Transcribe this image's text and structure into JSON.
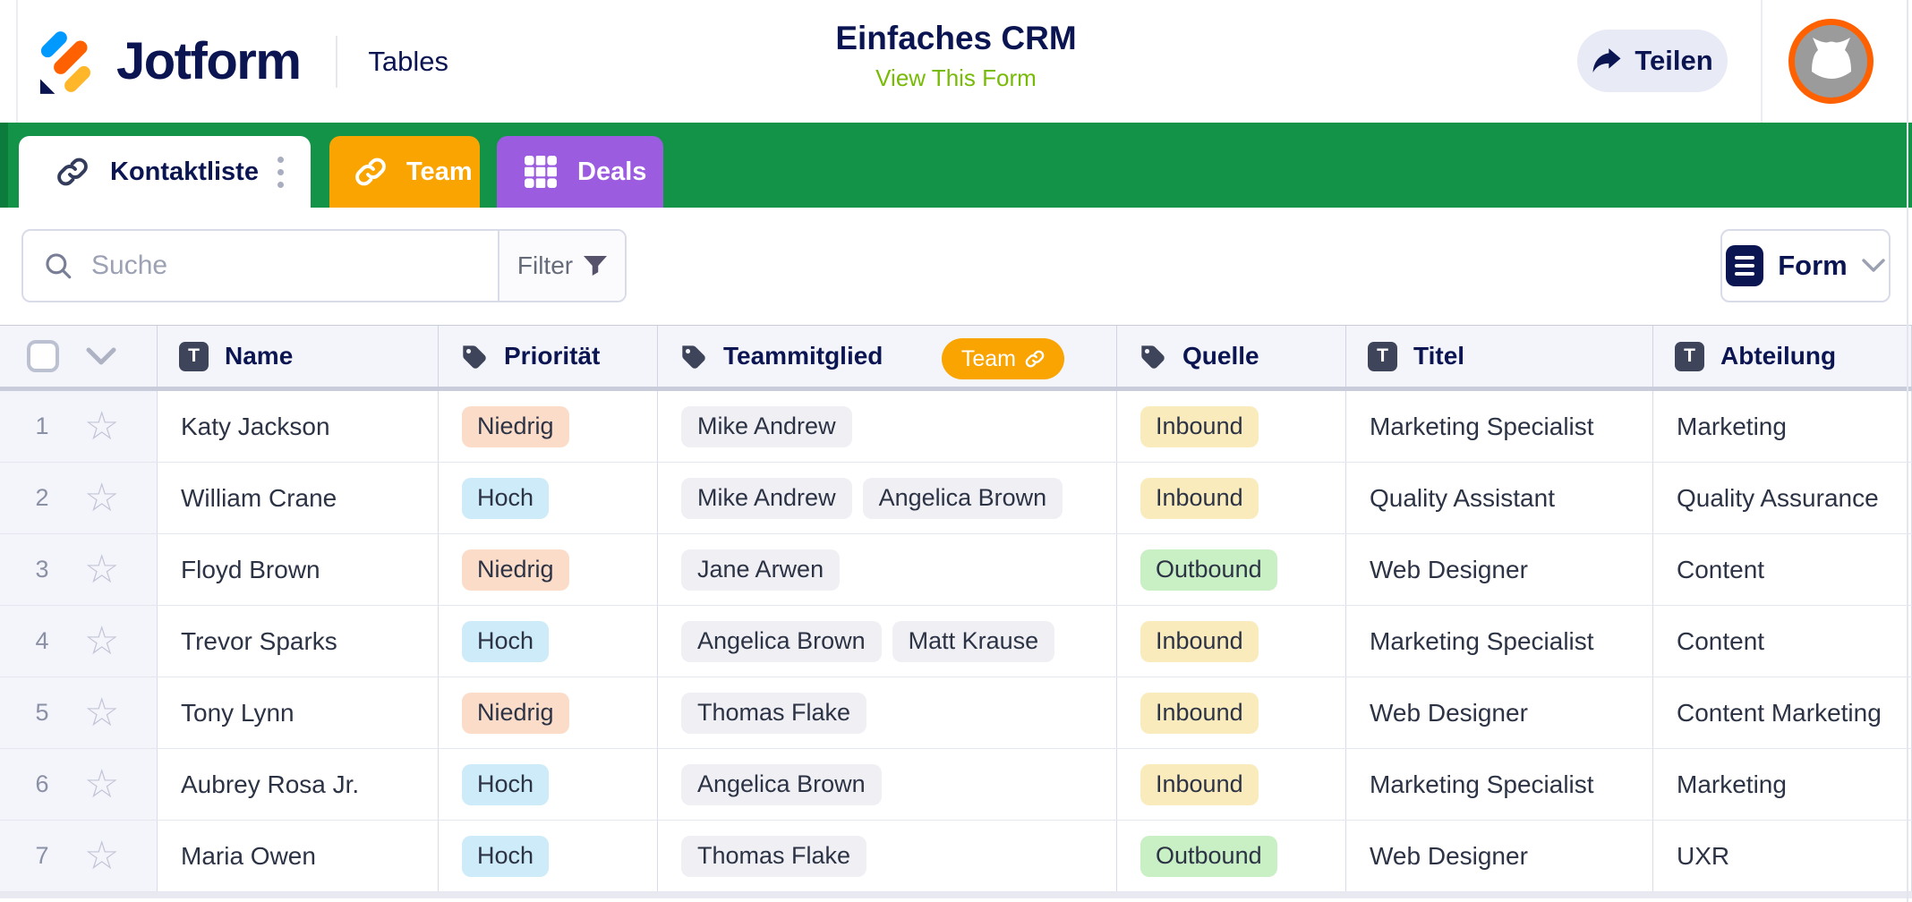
{
  "header": {
    "brand": "Jotform",
    "product": "Tables",
    "title": "Einfaches CRM",
    "subtitle_link": "View This Form",
    "share_label": "Teilen"
  },
  "tabs": [
    {
      "label": "Kontaktliste",
      "icon": "link-icon",
      "active": true
    },
    {
      "label": "Team",
      "icon": "link-icon",
      "active": false
    },
    {
      "label": "Deals",
      "icon": "grid-icon",
      "active": false
    }
  ],
  "toolbar": {
    "search_placeholder": "Suche",
    "filter_label": "Filter",
    "view_label": "Form"
  },
  "table": {
    "columns": [
      {
        "label": "Name",
        "icon": "text-field-icon"
      },
      {
        "label": "Priorität",
        "icon": "tag-icon"
      },
      {
        "label": "Teammitglied",
        "icon": "tag-icon",
        "badge": "Team"
      },
      {
        "label": "Quelle",
        "icon": "tag-icon"
      },
      {
        "label": "Titel",
        "icon": "text-field-icon"
      },
      {
        "label": "Abteilung",
        "icon": "text-field-icon"
      }
    ],
    "rows": [
      {
        "num": "1",
        "name": "Katy Jackson",
        "priority": "Niedrig",
        "team": [
          "Mike Andrew"
        ],
        "source": "Inbound",
        "title": "Marketing Specialist",
        "department": "Marketing"
      },
      {
        "num": "2",
        "name": "William Crane",
        "priority": "Hoch",
        "team": [
          "Mike Andrew",
          "Angelica Brown"
        ],
        "source": "Inbound",
        "title": "Quality Assistant",
        "department": "Quality Assurance"
      },
      {
        "num": "3",
        "name": "Floyd Brown",
        "priority": "Niedrig",
        "team": [
          "Jane Arwen"
        ],
        "source": "Outbound",
        "title": "Web Designer",
        "department": "Content"
      },
      {
        "num": "4",
        "name": "Trevor Sparks",
        "priority": "Hoch",
        "team": [
          "Angelica Brown",
          "Matt Krause"
        ],
        "source": "Inbound",
        "title": "Marketing Specialist",
        "department": "Content"
      },
      {
        "num": "5",
        "name": "Tony Lynn",
        "priority": "Niedrig",
        "team": [
          "Thomas Flake"
        ],
        "source": "Inbound",
        "title": "Web Designer",
        "department": "Content Marketing"
      },
      {
        "num": "6",
        "name": "Aubrey Rosa Jr.",
        "priority": "Hoch",
        "team": [
          "Angelica Brown"
        ],
        "source": "Inbound",
        "title": "Marketing Specialist",
        "department": "Marketing"
      },
      {
        "num": "7",
        "name": "Maria Owen",
        "priority": "Hoch",
        "team": [
          "Thomas Flake"
        ],
        "source": "Outbound",
        "title": "Web Designer",
        "department": "UXR"
      }
    ]
  },
  "colors": {
    "brand_navy": "#0A1551",
    "green_bar": "#129348",
    "lime_link": "#78BB07",
    "tab_team": "#F9A400",
    "tab_deals": "#9C5CE0",
    "team_badge": "#F9A400",
    "share_button_bg": "#E8EAF6",
    "avatar_ring": "#FF6100",
    "header_row_bg": "#F4F4FB",
    "chip_bg": "#EFEFF4",
    "priority": {
      "Niedrig": "#FBDCC8",
      "Hoch": "#CDEBF8"
    },
    "source": {
      "Inbound": "#FAEBBD",
      "Outbound": "#C9EFC4"
    }
  }
}
